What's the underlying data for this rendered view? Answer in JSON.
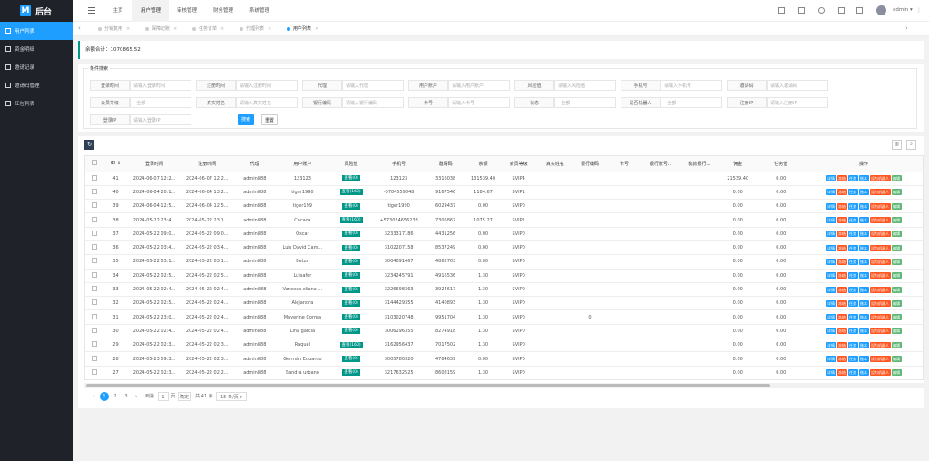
{
  "sidebar": {
    "title": "后台",
    "logo_char": "M",
    "items": [
      {
        "label": "用户列表"
      },
      {
        "label": "资金明细"
      },
      {
        "label": "邀请记录"
      },
      {
        "label": "邀请码管理"
      },
      {
        "label": "红包列表"
      }
    ]
  },
  "topbar": {
    "nav": [
      "主页",
      "用户管理",
      "审核管理",
      "财务管理",
      "系统管理"
    ],
    "active": "用户管理",
    "user": "admin"
  },
  "tabs": [
    {
      "label": "分销复用"
    },
    {
      "label": "保障记账"
    },
    {
      "label": "任务订单"
    },
    {
      "label": "代理列表"
    },
    {
      "label": "用户列表"
    }
  ],
  "balance_total": "余额合计：1070865.52",
  "search": {
    "legend": "条件搜索",
    "fields": [
      {
        "label": "登录时间",
        "placeholder": "请输入登录时间"
      },
      {
        "label": "注册时间",
        "placeholder": "请输入注册时间"
      },
      {
        "label": "代理",
        "placeholder": "请输入代理"
      },
      {
        "label": "用户账户",
        "placeholder": "请输入用户账户"
      },
      {
        "label": "风险值",
        "placeholder": "请输入风险值"
      },
      {
        "label": "手机号",
        "placeholder": "请输入手机号"
      },
      {
        "label": "邀请码",
        "placeholder": "请输入邀请码"
      },
      {
        "label": "会员等级",
        "placeholder": "- 全部 -"
      },
      {
        "label": "真实姓名",
        "placeholder": "请输入真实姓名"
      },
      {
        "label": "银行编码",
        "placeholder": "请输入银行编码"
      },
      {
        "label": "卡号",
        "placeholder": "请输入卡号"
      },
      {
        "label": "状态",
        "placeholder": "- 全部 -"
      },
      {
        "label": "是否机器人",
        "placeholder": "- 全部 -"
      },
      {
        "label": "注册IP",
        "placeholder": "请输入注册IP"
      },
      {
        "label": "登录IP",
        "placeholder": "请输入登录IP"
      }
    ],
    "search_btn": "搜索",
    "reset_btn": "重置"
  },
  "table": {
    "columns": [
      "ID",
      "登录时间",
      "注册时间",
      "代理",
      "用户账户",
      "风险值",
      "手机号",
      "邀请码",
      "余额",
      "会员等级",
      "真实姓名",
      "银行编码",
      "卡号",
      "银行账号...",
      "收款银行...",
      "佣金",
      "任务值",
      "操作"
    ],
    "actions": [
      "详情",
      "冻结",
      "任务",
      "账本",
      "设为机器人",
      "编辑"
    ],
    "rows": [
      {
        "id": "41",
        "login": "2024-06-07 12:2...",
        "reg": "2024-06-07 12:2...",
        "agent": "admin888",
        "account": "123123",
        "risk": "查看(0)",
        "phone": "123123",
        "code": "3316038",
        "balance": "131539.40",
        "level": "SVIP4",
        "name": "",
        "bank": "",
        "card": "",
        "bankno": "",
        "recv": "",
        "commission": "21539.40",
        "task": "0.00"
      },
      {
        "id": "40",
        "login": "2024-06-04 20:1...",
        "reg": "2024-06-04 13:2...",
        "agent": "admin888",
        "account": "tiger1990",
        "risk": "查看(160)",
        "phone": "-0784559848",
        "code": "9167546",
        "balance": "1184.67",
        "level": "SVIP1",
        "name": "",
        "bank": "",
        "card": "",
        "bankno": "",
        "recv": "",
        "commission": "0.00",
        "task": "0.00"
      },
      {
        "id": "39",
        "login": "2024-06-04 12:5...",
        "reg": "2024-06-04 12:5...",
        "agent": "admin888",
        "account": "tiger199",
        "risk": "查看(0)",
        "phone": "tiger1990",
        "code": "6029437",
        "balance": "0.00",
        "level": "SVIP0",
        "name": "",
        "bank": "",
        "card": "",
        "bankno": "",
        "recv": "",
        "commission": "0.00",
        "task": "0.00"
      },
      {
        "id": "38",
        "login": "2024-05-22 23:4...",
        "reg": "2024-05-22 23:1...",
        "agent": "admin888",
        "account": "Cacaca",
        "risk": "查看(160)",
        "phone": "+573024656233",
        "code": "7306867",
        "balance": "1075.27",
        "level": "SVIP1",
        "name": "",
        "bank": "",
        "card": "",
        "bankno": "",
        "recv": "",
        "commission": "0.00",
        "task": "0.00"
      },
      {
        "id": "37",
        "login": "2024-05-22 09:0...",
        "reg": "2024-05-22 09:0...",
        "agent": "admin888",
        "account": "Oscar",
        "risk": "查看(0)",
        "phone": "3233317186",
        "code": "4431256",
        "balance": "0.00",
        "level": "SVIP0",
        "name": "",
        "bank": "",
        "card": "",
        "bankno": "",
        "recv": "",
        "commission": "0.00",
        "task": "0.00"
      },
      {
        "id": "36",
        "login": "2024-05-22 03:4...",
        "reg": "2024-05-22 03:4...",
        "agent": "admin888",
        "account": "Luis David Cam...",
        "risk": "查看(0)",
        "phone": "3102207158",
        "code": "8537249",
        "balance": "0.00",
        "level": "SVIP0",
        "name": "",
        "bank": "",
        "card": "",
        "bankno": "",
        "recv": "",
        "commission": "0.00",
        "task": "0.00"
      },
      {
        "id": "35",
        "login": "2024-05-22 03:1...",
        "reg": "2024-05-22 03:1...",
        "agent": "admin888",
        "account": "Betza",
        "risk": "查看(0)",
        "phone": "3004091467",
        "code": "4862703",
        "balance": "0.00",
        "level": "SVIP0",
        "name": "",
        "bank": "",
        "card": "",
        "bankno": "",
        "recv": "",
        "commission": "0.00",
        "task": "0.00"
      },
      {
        "id": "34",
        "login": "2024-05-22 02:5...",
        "reg": "2024-05-22 02:5...",
        "agent": "admin888",
        "account": "Luisafer",
        "risk": "查看(0)",
        "phone": "3234245791",
        "code": "4916536",
        "balance": "1.30",
        "level": "SVIP0",
        "name": "",
        "bank": "",
        "card": "",
        "bankno": "",
        "recv": "",
        "commission": "0.00",
        "task": "0.00"
      },
      {
        "id": "33",
        "login": "2024-05-22 02:4...",
        "reg": "2024-05-22 02:4...",
        "agent": "admin888",
        "account": "Vanessa eliana ...",
        "risk": "查看(0)",
        "phone": "3226698363",
        "code": "3924617",
        "balance": "1.30",
        "level": "SVIP0",
        "name": "",
        "bank": "",
        "card": "",
        "bankno": "",
        "recv": "",
        "commission": "0.00",
        "task": "0.00"
      },
      {
        "id": "32",
        "login": "2024-05-22 02:5...",
        "reg": "2024-05-22 02:4...",
        "agent": "admin888",
        "account": "Alejandra",
        "risk": "查看(0)",
        "phone": "3144429355",
        "code": "4140893",
        "balance": "1.30",
        "level": "SVIP0",
        "name": "",
        "bank": "",
        "card": "",
        "bankno": "",
        "recv": "",
        "commission": "0.00",
        "task": "0.00"
      },
      {
        "id": "31",
        "login": "2024-05-22 23:0...",
        "reg": "2024-05-22 02:4...",
        "agent": "admin888",
        "account": "Mayerine Correa",
        "risk": "查看(0)",
        "phone": "3103020748",
        "code": "9951704",
        "balance": "1.30",
        "level": "SVIP0",
        "name": "",
        "bank": "0",
        "card": "",
        "bankno": "",
        "recv": "",
        "commission": "0.00",
        "task": "0.00"
      },
      {
        "id": "30",
        "login": "2024-05-22 02:4...",
        "reg": "2024-05-22 02:4...",
        "agent": "admin888",
        "account": "Lina garcia",
        "risk": "查看(0)",
        "phone": "3006296355",
        "code": "8274918",
        "balance": "1.30",
        "level": "SVIP0",
        "name": "",
        "bank": "",
        "card": "",
        "bankno": "",
        "recv": "",
        "commission": "0.00",
        "task": "0.00"
      },
      {
        "id": "29",
        "login": "2024-05-22 02:3...",
        "reg": "2024-05-22 02:3...",
        "agent": "admin888",
        "account": "Raquel",
        "risk": "查看(160)",
        "phone": "3162956437",
        "code": "7017502",
        "balance": "1.30",
        "level": "SVIP0",
        "name": "",
        "bank": "",
        "card": "",
        "bankno": "",
        "recv": "",
        "commission": "0.00",
        "task": "0.00"
      },
      {
        "id": "28",
        "login": "2024-05-23 09:3...",
        "reg": "2024-05-22 02:3...",
        "agent": "admin888",
        "account": "Germán Eduardo",
        "risk": "查看(0)",
        "phone": "3005780320",
        "code": "4784639",
        "balance": "0.00",
        "level": "SVIP0",
        "name": "",
        "bank": "",
        "card": "",
        "bankno": "",
        "recv": "",
        "commission": "0.00",
        "task": "0.00"
      },
      {
        "id": "27",
        "login": "2024-05-22 02:3...",
        "reg": "2024-05-22 02:2...",
        "agent": "admin888",
        "account": "Sandra urbano",
        "risk": "查看(0)",
        "phone": "3217632525",
        "code": "8608159",
        "balance": "1.30",
        "level": "SVIP0",
        "name": "",
        "bank": "",
        "card": "",
        "bankno": "",
        "recv": "",
        "commission": "0.00",
        "task": "0.00"
      }
    ]
  },
  "pager": {
    "pages": [
      "1",
      "2",
      "3"
    ],
    "current": "1",
    "goto_label": "到第",
    "goto_value": "1",
    "page_unit": "页",
    "confirm": "确定",
    "total": "共 41 条",
    "per_page": "15 条/页"
  },
  "colors": {
    "accent": "#1e9fff",
    "sidebar": "#20222a",
    "green": "#009688",
    "red": "#ff5722"
  }
}
